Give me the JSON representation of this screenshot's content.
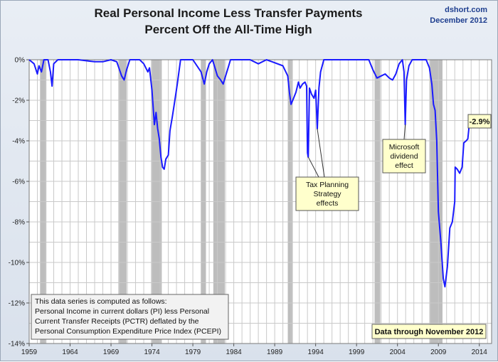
{
  "title_line1": "Real Personal Income Less Transfer Payments",
  "title_line2": "Percent Off the All-Time High",
  "source_line1": "dshort.com",
  "source_line2": "December 2012",
  "colors": {
    "line": "#1a1aff",
    "recession": "#bdbdbd",
    "grid": "#c9c9c9",
    "callout_fill": "#ffffcc"
  },
  "chart_data": {
    "type": "line",
    "title": "Real Personal Income Less Transfer Payments Percent Off the All-Time High",
    "xlim": [
      1959,
      2015.5
    ],
    "ylim": [
      -14,
      0
    ],
    "x_ticks": [
      1959,
      1964,
      1969,
      1974,
      1979,
      1984,
      1989,
      1994,
      1999,
      2004,
      2009,
      2014
    ],
    "y_ticks": [
      0,
      -2,
      -4,
      -6,
      -8,
      -10,
      -12,
      -14
    ],
    "y_tick_labels": [
      "0%",
      "-2%",
      "-4%",
      "-6%",
      "-8%",
      "-10%",
      "-12%",
      "-14%"
    ],
    "grid": "on",
    "recessions": [
      [
        1960.33,
        1961.1
      ],
      [
        1969.9,
        1970.9
      ],
      [
        1973.9,
        1975.2
      ],
      [
        1980.0,
        1980.6
      ],
      [
        1981.5,
        1982.9
      ],
      [
        1990.6,
        1991.2
      ],
      [
        2001.2,
        2001.9
      ],
      [
        2007.9,
        2009.5
      ]
    ],
    "series": [
      {
        "values": [
          [
            1959.0,
            0
          ],
          [
            1959.6,
            -0.2
          ],
          [
            1960.0,
            -0.7
          ],
          [
            1960.2,
            -0.3
          ],
          [
            1960.5,
            -0.6
          ],
          [
            1960.8,
            0
          ],
          [
            1961.3,
            0
          ],
          [
            1961.6,
            -0.6
          ],
          [
            1961.8,
            -1.3
          ],
          [
            1962.0,
            -0.2
          ],
          [
            1962.5,
            0
          ],
          [
            1964.0,
            0
          ],
          [
            1965.0,
            0
          ],
          [
            1967.0,
            -0.1
          ],
          [
            1968.0,
            -0.1
          ],
          [
            1969.0,
            0
          ],
          [
            1969.7,
            -0.1
          ],
          [
            1970.3,
            -0.8
          ],
          [
            1970.6,
            -1.0
          ],
          [
            1970.9,
            -0.5
          ],
          [
            1971.3,
            0
          ],
          [
            1972.5,
            0
          ],
          [
            1973.0,
            -0.2
          ],
          [
            1973.5,
            -0.6
          ],
          [
            1973.7,
            -0.4
          ],
          [
            1974.0,
            -1.5
          ],
          [
            1974.3,
            -3.2
          ],
          [
            1974.5,
            -2.6
          ],
          [
            1974.7,
            -3.4
          ],
          [
            1974.9,
            -3.9
          ],
          [
            1975.1,
            -4.8
          ],
          [
            1975.3,
            -5.3
          ],
          [
            1975.5,
            -5.4
          ],
          [
            1975.7,
            -4.9
          ],
          [
            1976.0,
            -4.7
          ],
          [
            1976.2,
            -3.5
          ],
          [
            1976.5,
            -2.8
          ],
          [
            1976.8,
            -2.0
          ],
          [
            1977.1,
            -1.2
          ],
          [
            1977.5,
            0
          ],
          [
            1978.0,
            0
          ],
          [
            1979.0,
            0
          ],
          [
            1980.0,
            -0.6
          ],
          [
            1980.4,
            -1.2
          ],
          [
            1980.7,
            -0.6
          ],
          [
            1981.0,
            -0.2
          ],
          [
            1981.4,
            0
          ],
          [
            1981.7,
            -0.4
          ],
          [
            1982.0,
            -0.8
          ],
          [
            1982.4,
            -1.0
          ],
          [
            1982.7,
            -1.2
          ],
          [
            1983.0,
            -0.8
          ],
          [
            1983.3,
            -0.4
          ],
          [
            1983.6,
            0
          ],
          [
            1986.0,
            0
          ],
          [
            1987.0,
            -0.2
          ],
          [
            1988.0,
            0
          ],
          [
            1990.0,
            -0.3
          ],
          [
            1990.6,
            -0.8
          ],
          [
            1990.8,
            -1.6
          ],
          [
            1991.0,
            -2.2
          ],
          [
            1991.3,
            -1.9
          ],
          [
            1991.6,
            -1.6
          ],
          [
            1991.9,
            -1.1
          ],
          [
            1992.1,
            -1.4
          ],
          [
            1992.4,
            -1.2
          ],
          [
            1992.7,
            -1.1
          ],
          [
            1992.9,
            -1.3
          ],
          [
            1993.0,
            -4.6
          ],
          [
            1993.1,
            -4.8
          ],
          [
            1993.25,
            -1.4
          ],
          [
            1993.5,
            -1.7
          ],
          [
            1993.8,
            -1.9
          ],
          [
            1994.0,
            -1.5
          ],
          [
            1994.2,
            -3.4
          ],
          [
            1994.4,
            -1.4
          ],
          [
            1994.6,
            -0.6
          ],
          [
            1995.0,
            0
          ],
          [
            1997.0,
            0
          ],
          [
            1999.0,
            0
          ],
          [
            2000.5,
            0
          ],
          [
            2001.0,
            -0.5
          ],
          [
            2001.5,
            -0.9
          ],
          [
            2002.0,
            -0.8
          ],
          [
            2002.5,
            -0.7
          ],
          [
            2003.0,
            -0.9
          ],
          [
            2003.4,
            -1.0
          ],
          [
            2003.8,
            -0.7
          ],
          [
            2004.2,
            -0.2
          ],
          [
            2004.6,
            0
          ],
          [
            2004.8,
            -0.6
          ],
          [
            2004.95,
            -3.2
          ],
          [
            2005.1,
            -1.0
          ],
          [
            2005.4,
            -0.3
          ],
          [
            2005.8,
            0
          ],
          [
            2007.5,
            0
          ],
          [
            2007.9,
            -0.4
          ],
          [
            2008.2,
            -1.2
          ],
          [
            2008.4,
            -2.2
          ],
          [
            2008.6,
            -2.5
          ],
          [
            2008.8,
            -4.0
          ],
          [
            2009.0,
            -7.5
          ],
          [
            2009.3,
            -9.0
          ],
          [
            2009.6,
            -10.8
          ],
          [
            2009.8,
            -11.2
          ],
          [
            2010.1,
            -10.2
          ],
          [
            2010.4,
            -8.3
          ],
          [
            2010.7,
            -8.0
          ],
          [
            2011.0,
            -7.0
          ],
          [
            2011.05,
            -5.3
          ],
          [
            2011.3,
            -5.4
          ],
          [
            2011.6,
            -5.6
          ],
          [
            2011.9,
            -5.3
          ],
          [
            2012.1,
            -4.1
          ],
          [
            2012.4,
            -4.0
          ],
          [
            2012.6,
            -3.9
          ],
          [
            2012.85,
            -2.9
          ]
        ]
      }
    ],
    "annotations": [
      {
        "text": "-2.9%",
        "x": 2012.85,
        "y": -2.9
      },
      {
        "text": "Microsoft dividend effect",
        "lines": [
          "Microsoft",
          "dividend",
          "effect"
        ],
        "x": 2004.95,
        "y": -3.2
      },
      {
        "text": "Tax Planning Strategy effects",
        "lines": [
          "Tax Planning",
          "Strategy",
          "effects"
        ],
        "x": 1993.1,
        "y": -4.8
      }
    ],
    "notes": {
      "method": [
        "This data series is computed as follows:",
        "Personal Income in current dollars  (PI) less Personal",
        "Current Transfer Receipts (PCTR) deflated by the",
        "Personal Consumption Expenditure Price Index (PCEPI)"
      ],
      "data_through": "Data through November 2012"
    }
  }
}
